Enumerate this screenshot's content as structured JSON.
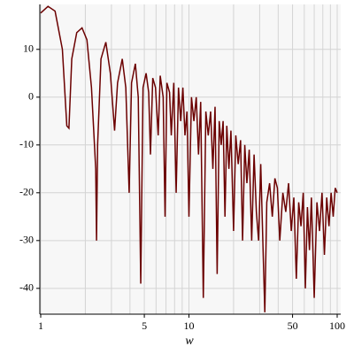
{
  "chart_data": {
    "type": "line",
    "x_label": "w",
    "log_x": true,
    "grid": true,
    "color": "#6b0000",
    "xlim": [
      1,
      100
    ],
    "ylim": [
      -45.4,
      19.4
    ],
    "xticks": [
      1,
      5,
      10,
      50,
      100
    ],
    "xgrid": [
      2,
      3,
      4,
      6,
      7,
      8,
      9,
      20,
      30,
      40,
      60,
      70,
      80,
      90
    ],
    "yticks": [
      -40,
      -30,
      -20,
      -10,
      0,
      10
    ],
    "x": [
      1,
      1.12,
      1.25,
      1.4,
      1.5,
      1.55,
      1.62,
      1.75,
      1.9,
      2.05,
      2.2,
      2.35,
      2.38,
      2.42,
      2.55,
      2.75,
      2.95,
      3.15,
      3.3,
      3.55,
      3.75,
      3.95,
      4.1,
      4.35,
      4.55,
      4.73,
      4.9,
      5.14,
      5.35,
      5.5,
      5.7,
      5.95,
      6.2,
      6.4,
      6.7,
      6.9,
      7.1,
      7.4,
      7.6,
      7.9,
      8.2,
      8.5,
      8.8,
      9.1,
      9.4,
      9.7,
      10,
      10.4,
      10.8,
      11.2,
      11.6,
      12,
      12.5,
      13,
      13.5,
      14,
      14.5,
      15,
      15.5,
      16,
      16.5,
      17,
      17.5,
      18,
      18.6,
      19.2,
      20,
      20.7,
      21.5,
      22.3,
      23,
      23.8,
      24.6,
      25.5,
      26.5,
      27.5,
      28.5,
      29.5,
      30.5,
      31.5,
      32.5,
      33.5,
      35,
      36.5,
      38,
      39.5,
      41,
      43,
      45,
      47,
      49,
      51,
      53,
      55,
      57,
      59,
      61,
      63,
      65,
      67,
      70,
      73,
      76,
      79,
      82,
      85,
      88,
      91,
      94,
      97,
      100
    ],
    "values": [
      17.6,
      19,
      18,
      10,
      -6,
      -6.5,
      8,
      13.5,
      14.5,
      12,
      2,
      -15,
      -30,
      -10,
      8,
      11.5,
      5,
      -7,
      3,
      8,
      2,
      -20,
      3,
      7,
      0,
      -39,
      2,
      5,
      1,
      -12,
      4,
      2,
      -8,
      4.5,
      0,
      -25,
      3,
      1,
      -8,
      3,
      -20,
      2,
      -5,
      2,
      -8,
      -3,
      -25,
      0,
      -5,
      0,
      -12,
      -1,
      -42,
      -3,
      -8,
      -3,
      -15,
      -2,
      -37,
      -5,
      -10,
      -5,
      -25,
      -6,
      -15,
      -7,
      -28,
      -8,
      -14,
      -9,
      -30,
      -10,
      -18,
      -11,
      -30,
      -12,
      -24,
      -30,
      -14,
      -30,
      -45,
      -22,
      -18,
      -25,
      -17,
      -19,
      -30,
      -20,
      -24,
      -18,
      -28,
      -21,
      -38,
      -22,
      -27,
      -20,
      -40,
      -23,
      -32,
      -21,
      -42,
      -22,
      -28,
      -20,
      -33,
      -21,
      -27,
      -20,
      -25,
      -19,
      -20
    ]
  }
}
